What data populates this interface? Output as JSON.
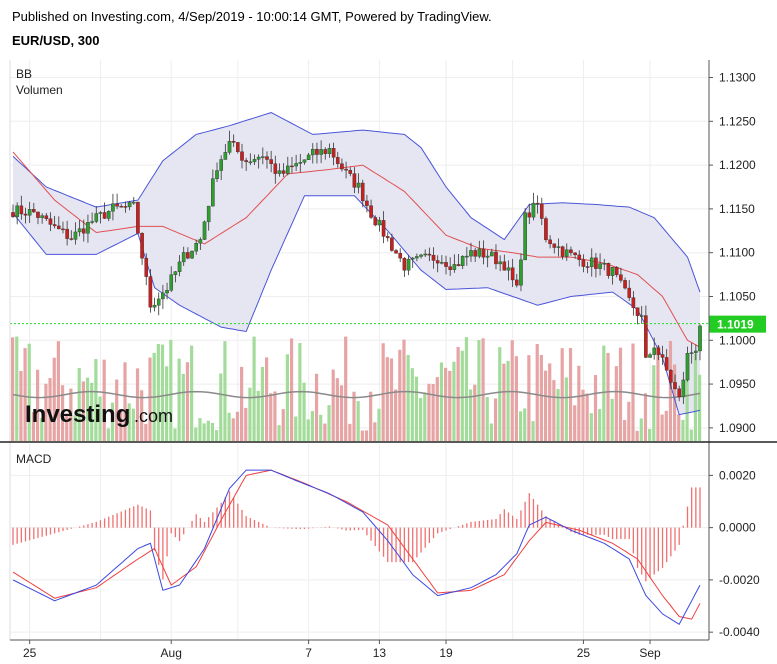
{
  "header": {
    "published": "Published on Investing.com, 4/Sep/2019 - 10:00:14 GMT, Powered by TradingView.",
    "symbol": "EUR/USD, 300"
  },
  "watermark": {
    "brand": "Investing",
    "domain": ".com"
  },
  "colors": {
    "up_candle": "#2e9e2e",
    "down_candle": "#c8201e",
    "band": "#4a55d8",
    "band_fill": "#e6e6f2",
    "basis": "#e05050",
    "vol_up": "#a3dc9a",
    "vol_down": "#e6a4a4",
    "vol_ma": "#8a8a8a",
    "macd": "#3a48e0",
    "signal": "#f04040",
    "hist": "#f07070",
    "price_marker": "#22cc22",
    "price_line": "#22dd22"
  },
  "chart_data": [
    {
      "type": "candlestick",
      "panel": "price",
      "indicator_labels": [
        "BB",
        "Volumen"
      ],
      "ylim": [
        1.0885,
        1.132
      ],
      "y_ticks": [
        "1.1300",
        "1.1250",
        "1.1200",
        "1.1150",
        "1.1100",
        "1.1050",
        "1.1000",
        "1.0950",
        "1.0900"
      ],
      "x_ticks": [
        "25",
        "Aug",
        "7",
        "13",
        "19",
        "25",
        "Sep"
      ],
      "last_price": "1.1019",
      "keypoints_close": [
        [
          0,
          1.1148
        ],
        [
          5,
          1.1146
        ],
        [
          10,
          1.1128
        ],
        [
          14,
          1.1117
        ],
        [
          19,
          1.1136
        ],
        [
          24,
          1.115
        ],
        [
          29,
          1.1152
        ],
        [
          33,
          1.104
        ],
        [
          37,
          1.106
        ],
        [
          41,
          1.1095
        ],
        [
          45,
          1.1115
        ],
        [
          49,
          1.12
        ],
        [
          52,
          1.1225
        ],
        [
          56,
          1.1205
        ],
        [
          60,
          1.1212
        ],
        [
          64,
          1.1188
        ],
        [
          68,
          1.12
        ],
        [
          72,
          1.1212
        ],
        [
          76,
          1.1218
        ],
        [
          80,
          1.119
        ],
        [
          83,
          1.1175
        ],
        [
          86,
          1.1145
        ],
        [
          90,
          1.1115
        ],
        [
          94,
          1.1085
        ],
        [
          98,
          1.1092
        ],
        [
          102,
          1.1095
        ],
        [
          106,
          1.1085
        ],
        [
          110,
          1.11
        ],
        [
          114,
          1.1098
        ],
        [
          118,
          1.1087
        ],
        [
          121,
          1.1057
        ],
        [
          123,
          1.114
        ],
        [
          126,
          1.1155
        ],
        [
          128,
          1.1118
        ],
        [
          132,
          1.1102
        ],
        [
          136,
          1.1092
        ],
        [
          140,
          1.1087
        ],
        [
          144,
          1.1078
        ],
        [
          148,
          1.1045
        ],
        [
          151,
          1.1025
        ],
        [
          152,
          1.0975
        ],
        [
          154,
          1.0995
        ],
        [
          157,
          1.0965
        ],
        [
          160,
          1.0932
        ],
        [
          162,
          1.0982
        ],
        [
          164,
          1.0992
        ],
        [
          165,
          1.1019
        ]
      ],
      "bollinger": {
        "upper_keypoints": [
          [
            0,
            1.121
          ],
          [
            8,
            1.1175
          ],
          [
            20,
            1.1152
          ],
          [
            30,
            1.116
          ],
          [
            36,
            1.1205
          ],
          [
            44,
            1.1235
          ],
          [
            52,
            1.1245
          ],
          [
            62,
            1.126
          ],
          [
            72,
            1.1235
          ],
          [
            84,
            1.124
          ],
          [
            94,
            1.1235
          ],
          [
            98,
            1.122
          ],
          [
            104,
            1.1175
          ],
          [
            110,
            1.114
          ],
          [
            118,
            1.1115
          ],
          [
            124,
            1.1155
          ],
          [
            132,
            1.1157
          ],
          [
            140,
            1.1155
          ],
          [
            148,
            1.1152
          ],
          [
            154,
            1.114
          ],
          [
            162,
            1.1095
          ],
          [
            165,
            1.1055
          ]
        ],
        "lower_keypoints": [
          [
            0,
            1.1145
          ],
          [
            8,
            1.1098
          ],
          [
            20,
            1.1098
          ],
          [
            30,
            1.1122
          ],
          [
            34,
            1.106
          ],
          [
            40,
            1.104
          ],
          [
            50,
            1.1015
          ],
          [
            56,
            1.101
          ],
          [
            62,
            1.108
          ],
          [
            70,
            1.1165
          ],
          [
            82,
            1.1165
          ],
          [
            90,
            1.1125
          ],
          [
            98,
            1.108
          ],
          [
            104,
            1.1058
          ],
          [
            114,
            1.106
          ],
          [
            120,
            1.105
          ],
          [
            126,
            1.104
          ],
          [
            134,
            1.105
          ],
          [
            144,
            1.1055
          ],
          [
            150,
            1.1035
          ],
          [
            156,
            1.098
          ],
          [
            160,
            1.0915
          ],
          [
            165,
            1.092
          ]
        ],
        "basis_keypoints": [
          [
            0,
            1.1215
          ],
          [
            10,
            1.116
          ],
          [
            20,
            1.1123
          ],
          [
            30,
            1.113
          ],
          [
            36,
            1.113
          ],
          [
            46,
            1.111
          ],
          [
            56,
            1.114
          ],
          [
            66,
            1.119
          ],
          [
            76,
            1.1195
          ],
          [
            84,
            1.12
          ],
          [
            94,
            1.117
          ],
          [
            104,
            1.112
          ],
          [
            112,
            1.1105
          ],
          [
            120,
            1.11
          ],
          [
            126,
            1.1095
          ],
          [
            134,
            1.1095
          ],
          [
            142,
            1.1088
          ],
          [
            150,
            1.1075
          ],
          [
            156,
            1.105
          ],
          [
            162,
            1.1
          ],
          [
            165,
            1.0992
          ]
        ]
      },
      "volume_ma_level": 1.0938
    },
    {
      "type": "line",
      "panel": "macd",
      "label": "MACD",
      "ylim": [
        -0.0043,
        0.0032
      ],
      "y_ticks": [
        "0.0020",
        "0.0000",
        "-0.0020",
        "-0.0040"
      ],
      "macd_keypoints": [
        [
          0,
          -0.002
        ],
        [
          10,
          -0.0028
        ],
        [
          20,
          -0.0022
        ],
        [
          30,
          -0.0008
        ],
        [
          33,
          -0.0006
        ],
        [
          36,
          -0.0024
        ],
        [
          40,
          -0.0022
        ],
        [
          46,
          -0.0008
        ],
        [
          52,
          0.0015
        ],
        [
          56,
          0.0022
        ],
        [
          62,
          0.0022
        ],
        [
          68,
          0.0018
        ],
        [
          76,
          0.0013
        ],
        [
          84,
          0.0006
        ],
        [
          90,
          -0.0005
        ],
        [
          96,
          -0.0018
        ],
        [
          102,
          -0.0026
        ],
        [
          110,
          -0.0023
        ],
        [
          116,
          -0.0018
        ],
        [
          121,
          -0.001
        ],
        [
          124,
          0.0001
        ],
        [
          128,
          0.0004
        ],
        [
          134,
          -0.0001
        ],
        [
          142,
          -0.0006
        ],
        [
          148,
          -0.0012
        ],
        [
          152,
          -0.0026
        ],
        [
          156,
          -0.0033
        ],
        [
          160,
          -0.0037
        ],
        [
          165,
          -0.0022
        ]
      ],
      "signal_keypoints": [
        [
          0,
          -0.0017
        ],
        [
          10,
          -0.0027
        ],
        [
          20,
          -0.0023
        ],
        [
          30,
          -0.0012
        ],
        [
          34,
          -0.0008
        ],
        [
          38,
          -0.0022
        ],
        [
          44,
          -0.0015
        ],
        [
          50,
          0.0003
        ],
        [
          56,
          0.002
        ],
        [
          62,
          0.0022
        ],
        [
          70,
          0.0017
        ],
        [
          80,
          0.001
        ],
        [
          90,
          0.0001
        ],
        [
          96,
          -0.0012
        ],
        [
          102,
          -0.0025
        ],
        [
          110,
          -0.0024
        ],
        [
          118,
          -0.0018
        ],
        [
          124,
          -0.0005
        ],
        [
          128,
          0.0002
        ],
        [
          136,
          -0.0001
        ],
        [
          144,
          -0.0006
        ],
        [
          150,
          -0.0012
        ],
        [
          156,
          -0.0026
        ],
        [
          160,
          -0.0034
        ],
        [
          163,
          -0.0035
        ],
        [
          165,
          -0.0029
        ]
      ]
    }
  ]
}
